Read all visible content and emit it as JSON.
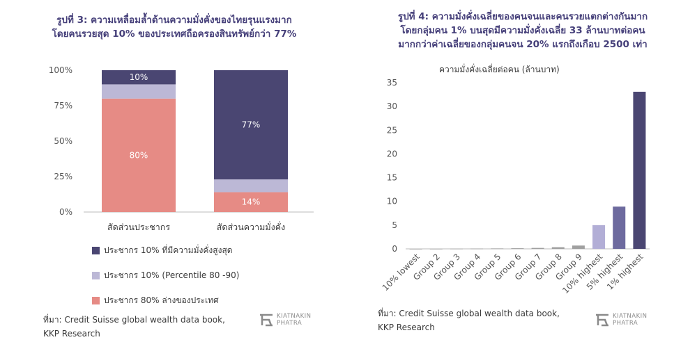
{
  "left": {
    "title_lines": [
      "รูปที่ 3: ความเหลื่อมล้ำด้านความมั่งคั่งของไทยรุนแรงมาก",
      "โดยคนรวยสุด 10% ของประเทศถือครองสินทรัพย์กว่า 77%"
    ],
    "legend": [
      {
        "label": "ประชากร 10% ที่มีความมั่งคั่งสูงสุด",
        "color": "#4a4672"
      },
      {
        "label": "ประชากร 10% (Percentile 80 -90)",
        "color": "#bcb8d6"
      },
      {
        "label": "ประชากร 80% ล่างของประเทศ",
        "color": "#e68b85"
      }
    ],
    "source_lines": [
      "ที่มา: Credit Suisse global wealth data book,",
      "KKP Research"
    ],
    "logo_lines": [
      "KIATNAKIN",
      "PHATRA"
    ]
  },
  "right": {
    "title_lines": [
      "รูปที่ 4: ความมั่งคั่งเฉลี่ยของคนจนและคนรวยแตกต่างกันมาก",
      "โดยกลุ่มคน 1% บนสุดมีความมั่งคั่งเฉลี่ย 33 ล้านบาทต่อคน",
      "มากกว่าค่าเฉลี่ยของกลุ่มคนจน 20% แรกถึงเกือบ 2500 เท่า"
    ],
    "source_lines": [
      "ที่มา: Credit Suisse global wealth data book,",
      "KKP Research"
    ],
    "logo_lines": [
      "KIATNAKIN",
      "PHATRA"
    ]
  },
  "chart_data": [
    {
      "type": "bar",
      "stacked": true,
      "categories": [
        "สัดส่วนประชากร",
        "สัดส่วนความมั่งคั่ง"
      ],
      "series": [
        {
          "name": "ประชากร 80% ล่างของประเทศ",
          "values": [
            80,
            14
          ],
          "labels": [
            "80%",
            "14%"
          ],
          "color": "#e68b85"
        },
        {
          "name": "ประชากร 10% (Percentile 80 -90)",
          "values": [
            10,
            9
          ],
          "labels": [
            "",
            ""
          ],
          "color": "#bcb8d6"
        },
        {
          "name": "ประชากร 10% ที่มีความมั่งคั่งสูงสุด",
          "values": [
            10,
            77
          ],
          "labels": [
            "10%",
            "77%"
          ],
          "color": "#4a4672"
        }
      ],
      "yticks": [
        "0%",
        "25%",
        "50%",
        "75%",
        "100%"
      ],
      "ylim": [
        0,
        100
      ],
      "grid": false,
      "legend_position": "bottom"
    },
    {
      "type": "bar",
      "ylabel": "ความมั่งคั่งเฉลี่ยต่อคน  (ล้านบาท)",
      "categories": [
        "10% lowest",
        "Group 2",
        "Group 3",
        "Group 4",
        "Group 5",
        "Group 6",
        "Group 7",
        "Group 8",
        "Group 9",
        "10% highest",
        "5% highest",
        "1% highest"
      ],
      "values": [
        0.01,
        0.02,
        0.04,
        0.06,
        0.09,
        0.13,
        0.2,
        0.35,
        0.7,
        5.0,
        8.9,
        33.1
      ],
      "colors": [
        "#a0a0a0",
        "#a0a0a0",
        "#a0a0a0",
        "#a0a0a0",
        "#a0a0a0",
        "#a0a0a0",
        "#a0a0a0",
        "#a0a0a0",
        "#a0a0a0",
        "#b2aed6",
        "#6d6a9e",
        "#4a4672"
      ],
      "yticks": [
        "0",
        "5",
        "10",
        "15",
        "20",
        "25",
        "30",
        "35"
      ],
      "ylim": [
        0,
        35
      ],
      "grid": false
    }
  ]
}
